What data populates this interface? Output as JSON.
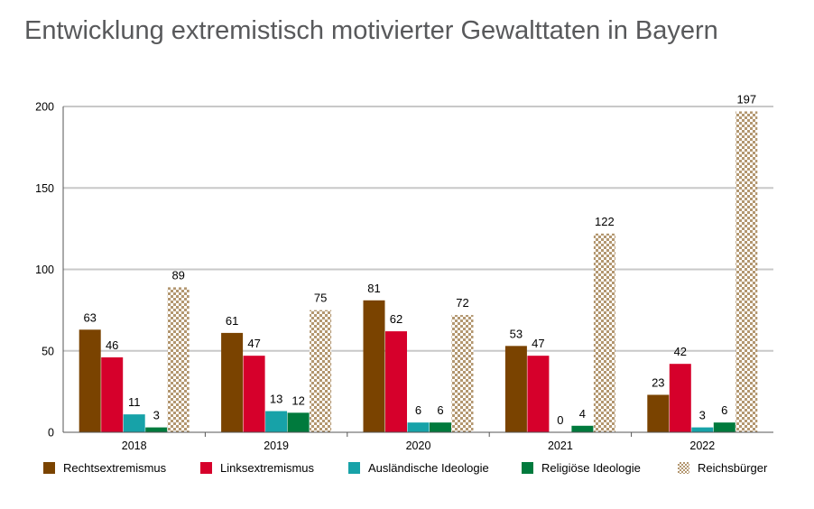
{
  "title": "Entwicklung extremistisch motivierter Gewalttaten in Bayern",
  "chart_data": {
    "type": "bar",
    "title": "Entwicklung extremistisch motivierter Gewalttaten in Bayern",
    "categories": [
      "2018",
      "2019",
      "2020",
      "2021",
      "2022"
    ],
    "ylim": [
      0,
      200
    ],
    "yticks": [
      0,
      50,
      100,
      150,
      200
    ],
    "grid": true,
    "legend_position": "bottom",
    "series": [
      {
        "name": "Rechtsextremismus",
        "color": "#7a4300",
        "pattern": "solid",
        "values": [
          63,
          61,
          81,
          53,
          23
        ]
      },
      {
        "name": "Linksextremismus",
        "color": "#d6002b",
        "pattern": "solid",
        "values": [
          46,
          47,
          62,
          47,
          42
        ]
      },
      {
        "name": "Ausländische Ideologie",
        "color": "#17a2a8",
        "pattern": "solid",
        "values": [
          11,
          13,
          6,
          0,
          3
        ]
      },
      {
        "name": "Religiöse Ideologie",
        "color": "#007a3d",
        "pattern": "solid",
        "values": [
          3,
          12,
          6,
          4,
          6
        ]
      },
      {
        "name": "Reichsbürger",
        "color": "#b39770",
        "pattern": "checker",
        "values": [
          89,
          75,
          72,
          122,
          197
        ]
      }
    ]
  }
}
